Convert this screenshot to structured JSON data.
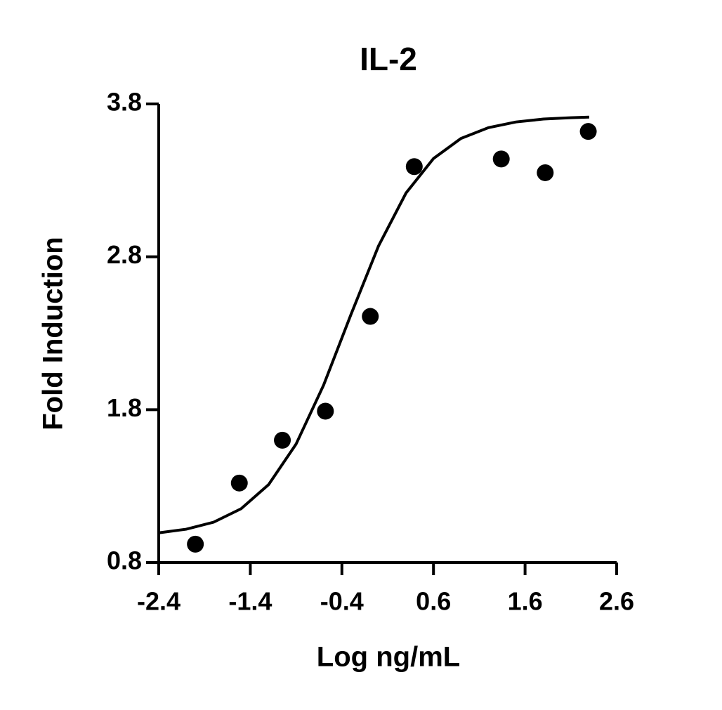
{
  "chart_data": {
    "type": "scatter",
    "title": "IL-2",
    "x_label": "Log ng/mL",
    "y_label": "Fold Induction",
    "xlim": [
      -2.4,
      2.6
    ],
    "xticks": [
      -2.4,
      -1.4,
      -0.4,
      0.6,
      1.6,
      2.6
    ],
    "ylim": [
      0.8,
      3.8
    ],
    "yticks": [
      0.8,
      1.8,
      2.8,
      3.8
    ],
    "series": [
      {
        "style": "markers",
        "color": "#000000",
        "x": [
          -2.0,
          -1.52,
          -1.05,
          -0.58,
          -0.09,
          0.39,
          1.34,
          1.82,
          2.29
        ],
        "values": [
          0.92,
          1.32,
          1.6,
          1.79,
          2.41,
          3.39,
          3.44,
          3.35,
          3.62
        ]
      },
      {
        "style": "line",
        "color": "#000000",
        "x": [
          -2.4,
          -2.1,
          -1.8,
          -1.5,
          -1.2,
          -0.9,
          -0.6,
          -0.3,
          0,
          0.3,
          0.6,
          0.9,
          1.2,
          1.5,
          1.8,
          2.1,
          2.3
        ],
        "values": [
          0.994,
          1.018,
          1.064,
          1.152,
          1.31,
          1.575,
          1.96,
          2.424,
          2.871,
          3.217,
          3.443,
          3.574,
          3.645,
          3.682,
          3.701,
          3.71,
          3.714
        ]
      }
    ]
  }
}
